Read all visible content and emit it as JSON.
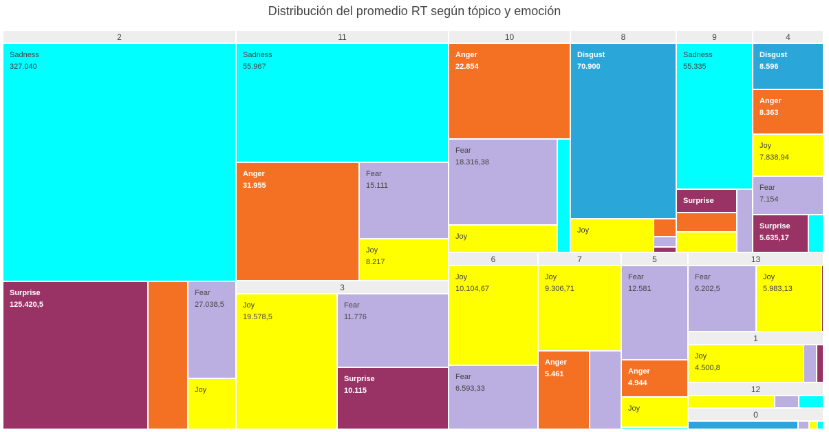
{
  "title": "Distribución del promedio RT según tópico y emoción",
  "colors": {
    "Sadness": "#00ffff",
    "Surprise": "#993366",
    "Anger": "#f47023",
    "Fear": "#bbaee0",
    "Joy": "#ffff00",
    "Disgust": "#2ba6d9"
  },
  "chart_data": {
    "type": "treemap",
    "title": "Distribución del promedio RT según tópico y emoción",
    "groups": [
      {
        "name": "2",
        "children": [
          {
            "emotion": "Sadness",
            "value": 327040,
            "label": "Sadness",
            "value_text": "327.040"
          },
          {
            "emotion": "Surprise",
            "value": 125420.5,
            "label": "Surprise",
            "value_text": "125.420,5"
          },
          {
            "emotion": "Anger",
            "value": 30000,
            "label": "",
            "value_text": ""
          },
          {
            "emotion": "Fear",
            "value": 27038.5,
            "label": "Fear",
            "value_text": "27.038,5"
          },
          {
            "emotion": "Joy",
            "value": 13000,
            "label": "Joy",
            "value_text": ""
          }
        ]
      },
      {
        "name": "11",
        "children": [
          {
            "emotion": "Sadness",
            "value": 55967,
            "label": "Sadness",
            "value_text": "55.967"
          },
          {
            "emotion": "Anger",
            "value": 31955,
            "label": "Anger",
            "value_text": "31.955"
          },
          {
            "emotion": "Fear",
            "value": 15111,
            "label": "Fear",
            "value_text": "15.111"
          },
          {
            "emotion": "Joy",
            "value": 8217,
            "label": "Joy",
            "value_text": "8.217"
          }
        ]
      },
      {
        "name": "3",
        "children": [
          {
            "emotion": "Joy",
            "value": 19578.5,
            "label": "Joy",
            "value_text": "19.578,5"
          },
          {
            "emotion": "Fear",
            "value": 11776,
            "label": "Fear",
            "value_text": "11.776"
          },
          {
            "emotion": "Surprise",
            "value": 10115,
            "label": "Surprise",
            "value_text": "10.115"
          }
        ]
      },
      {
        "name": "10",
        "children": [
          {
            "emotion": "Anger",
            "value": 22854,
            "label": "Anger",
            "value_text": "22.854"
          },
          {
            "emotion": "Fear",
            "value": 18316.38,
            "label": "Fear",
            "value_text": "18.316,38"
          },
          {
            "emotion": "Joy",
            "value": 5000,
            "label": "Joy",
            "value_text": ""
          },
          {
            "emotion": "Sadness",
            "value": 2900,
            "label": "",
            "value_text": ""
          }
        ]
      },
      {
        "name": "8",
        "children": [
          {
            "emotion": "Disgust",
            "value": 70900,
            "label": "Disgust",
            "value_text": "70.900"
          },
          {
            "emotion": "Joy",
            "value": 11000,
            "label": "Joy",
            "value_text": ""
          },
          {
            "emotion": "Anger",
            "value": 2200,
            "label": "",
            "value_text": ""
          },
          {
            "emotion": "Fear",
            "value": 1200,
            "label": "",
            "value_text": ""
          },
          {
            "emotion": "Surprise",
            "value": 800,
            "label": "",
            "value_text": ""
          }
        ]
      },
      {
        "name": "9",
        "children": [
          {
            "emotion": "Sadness",
            "value": 55335,
            "label": "Sadness",
            "value_text": "55.335"
          },
          {
            "emotion": "Surprise",
            "value": 7100,
            "label": "Surprise",
            "value_text": ""
          },
          {
            "emotion": "Anger",
            "value": 6200,
            "label": "",
            "value_text": ""
          },
          {
            "emotion": "Joy",
            "value": 6000,
            "label": "",
            "value_text": ""
          },
          {
            "emotion": "Fear",
            "value": 4900,
            "label": "",
            "value_text": ""
          }
        ]
      },
      {
        "name": "4",
        "children": [
          {
            "emotion": "Disgust",
            "value": 8596,
            "label": "Disgust",
            "value_text": "8.596"
          },
          {
            "emotion": "Anger",
            "value": 8363,
            "label": "Anger",
            "value_text": "8.363"
          },
          {
            "emotion": "Joy",
            "value": 7838.94,
            "label": "Joy",
            "value_text": "7.838,94"
          },
          {
            "emotion": "Fear",
            "value": 7154,
            "label": "Fear",
            "value_text": "7.154"
          },
          {
            "emotion": "Surprise",
            "value": 5635.17,
            "label": "Surprise",
            "value_text": "5.635,17"
          },
          {
            "emotion": "Sadness",
            "value": 1400,
            "label": "",
            "value_text": ""
          }
        ]
      },
      {
        "name": "6",
        "children": [
          {
            "emotion": "Joy",
            "value": 10104.67,
            "label": "Joy",
            "value_text": "10.104,67"
          },
          {
            "emotion": "Fear",
            "value": 6593.33,
            "label": "Fear",
            "value_text": "6.593,33"
          }
        ]
      },
      {
        "name": "7",
        "children": [
          {
            "emotion": "Joy",
            "value": 9306.71,
            "label": "Joy",
            "value_text": "9.306,71"
          },
          {
            "emotion": "Anger",
            "value": 5461,
            "label": "Anger",
            "value_text": "5.461"
          },
          {
            "emotion": "Fear",
            "value": 3200,
            "label": "",
            "value_text": ""
          }
        ]
      },
      {
        "name": "5",
        "children": [
          {
            "emotion": "Fear",
            "value": 12581,
            "label": "Fear",
            "value_text": "12.581"
          },
          {
            "emotion": "Anger",
            "value": 4944,
            "label": "Anger",
            "value_text": "4.944"
          },
          {
            "emotion": "Joy",
            "value": 4300,
            "label": "Joy",
            "value_text": ""
          },
          {
            "emotion": "Sadness",
            "value": 300,
            "label": "",
            "value_text": ""
          }
        ]
      },
      {
        "name": "13",
        "children": [
          {
            "emotion": "Fear",
            "value": 6202.5,
            "label": "Fear",
            "value_text": "6.202,5"
          },
          {
            "emotion": "Joy",
            "value": 5983.13,
            "label": "Joy",
            "value_text": "5.983,13"
          },
          {
            "emotion": "Surprise",
            "value": 150,
            "label": "",
            "value_text": ""
          }
        ]
      },
      {
        "name": "1",
        "children": [
          {
            "emotion": "Joy",
            "value": 4500.8,
            "label": "Joy",
            "value_text": "4.500,8"
          },
          {
            "emotion": "Fear",
            "value": 500,
            "label": "",
            "value_text": ""
          },
          {
            "emotion": "Surprise",
            "value": 250,
            "label": "",
            "value_text": ""
          }
        ]
      },
      {
        "name": "12",
        "children": [
          {
            "emotion": "Joy",
            "value": 2000,
            "label": "",
            "value_text": ""
          },
          {
            "emotion": "Fear",
            "value": 550,
            "label": "",
            "value_text": ""
          },
          {
            "emotion": "Sadness",
            "value": 550,
            "label": "",
            "value_text": ""
          }
        ]
      },
      {
        "name": "0",
        "children": [
          {
            "emotion": "Disgust",
            "value": 1000,
            "label": "",
            "value_text": ""
          },
          {
            "emotion": "Fear",
            "value": 120,
            "label": "",
            "value_text": ""
          },
          {
            "emotion": "Joy",
            "value": 80,
            "label": "",
            "value_text": ""
          },
          {
            "emotion": "Sadness",
            "value": 40,
            "label": "",
            "value_text": ""
          }
        ]
      }
    ]
  }
}
